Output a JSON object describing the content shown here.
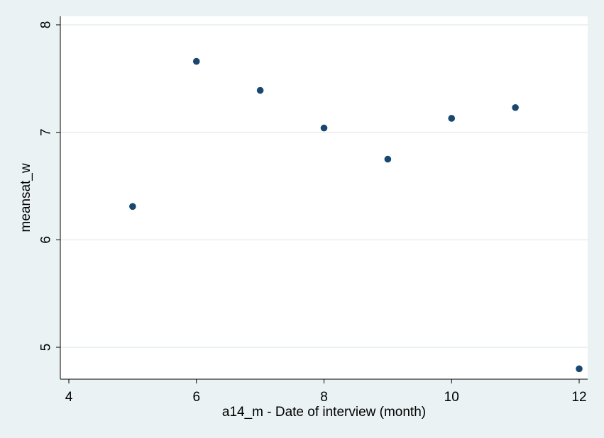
{
  "chart_data": {
    "type": "scatter",
    "title": "",
    "xlabel": "a14_m - Date of interview (month)",
    "ylabel": "meansat_w",
    "xlim": [
      3.9,
      12.1
    ],
    "ylim": [
      4.7,
      8.1
    ],
    "xticks": [
      4,
      6,
      8,
      10,
      12
    ],
    "xtick_labels": [
      "4",
      "6",
      "8",
      "10",
      "12"
    ],
    "yticks": [
      5,
      6,
      7,
      8
    ],
    "ytick_labels": [
      "5",
      "6",
      "7",
      "8"
    ],
    "grid": "horizontal",
    "series": [
      {
        "x": [
          5,
          6,
          7,
          8,
          9,
          10,
          11,
          12
        ],
        "y": [
          6.31,
          7.66,
          7.39,
          7.04,
          6.75,
          7.13,
          7.23,
          4.8
        ]
      }
    ],
    "colors": {
      "background": "#eaf2f3",
      "plot_background": "#ffffff",
      "grid": "#e6eef0",
      "marker": "#1a476f",
      "axis": "#000000"
    }
  }
}
